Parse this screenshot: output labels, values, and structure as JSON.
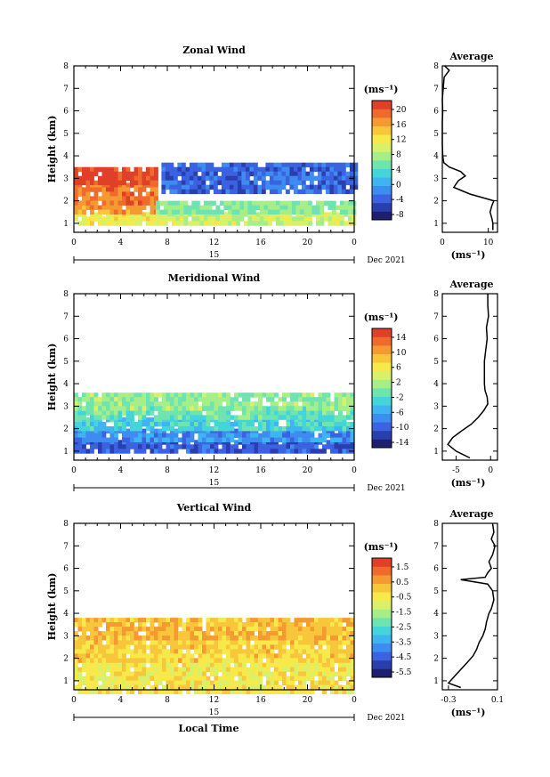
{
  "panels": [
    {
      "id": "zonal",
      "title": "Zonal Wind",
      "ylabel": "Height (km)",
      "unit": "(ms⁻¹)",
      "date_label": "Dec 2021",
      "day_label": "15",
      "avg_title": "Average",
      "avg_xlabel": "(ms⁻¹)",
      "colorbar_ticks": [
        "20",
        "16",
        "12",
        "8",
        "4",
        "0",
        "-4",
        "-8"
      ],
      "avg_xticks": [
        "0",
        "10"
      ]
    },
    {
      "id": "meridional",
      "title": "Meridional Wind",
      "ylabel": "Height (km)",
      "unit": "(ms⁻¹)",
      "date_label": "Dec 2021",
      "day_label": "15",
      "avg_title": "Average",
      "avg_xlabel": "(ms⁻¹)",
      "colorbar_ticks": [
        "14",
        "10",
        "6",
        "2",
        "-2",
        "-6",
        "-10",
        "-14"
      ],
      "avg_xticks": [
        "-5",
        "0"
      ]
    },
    {
      "id": "vertical",
      "title": "Vertical Wind",
      "ylabel": "Height (km)",
      "unit": "(ms⁻¹)",
      "date_label": "Dec 2021",
      "day_label": "15",
      "avg_title": "Average",
      "avg_xlabel": "(ms⁻¹)",
      "colorbar_ticks": [
        "1.5",
        "0.5",
        "-0.5",
        "-1.5",
        "-2.5",
        "-3.5",
        "-4.5",
        "-5.5"
      ],
      "avg_xticks": [
        "-0.3",
        "0.1"
      ]
    }
  ],
  "xticks": [
    "0",
    "4",
    "8",
    "12",
    "16",
    "20",
    "0"
  ],
  "yticks": [
    "1",
    "2",
    "3",
    "4",
    "5",
    "6",
    "7",
    "8"
  ],
  "xlabel": "Local Time",
  "colormap": [
    "#1e1f6e",
    "#2a3fae",
    "#3b62e0",
    "#3f8cf0",
    "#3eb5f0",
    "#43d5d8",
    "#6fe3b0",
    "#a6ef88",
    "#d9f06a",
    "#f7e94a",
    "#f7c63a",
    "#f59a32",
    "#f06a2c",
    "#e0402a"
  ],
  "chart_data": [
    {
      "type": "heatmap",
      "title": "Zonal Wind",
      "ylabel": "Height (km)",
      "xlim": [
        0,
        24
      ],
      "ylim": [
        0.6,
        8
      ],
      "clim": [
        -10,
        22
      ],
      "contour_levels": [
        0
      ],
      "regions": [
        {
          "x": [
            0,
            7
          ],
          "y": [
            1.0,
            1.5
          ],
          "value": 11
        },
        {
          "x": [
            0,
            7
          ],
          "y": [
            1.5,
            2.0
          ],
          "value": 16
        },
        {
          "x": [
            0,
            7
          ],
          "y": [
            2.0,
            2.8
          ],
          "value": 18
        },
        {
          "x": [
            0,
            7
          ],
          "y": [
            2.8,
            3.5
          ],
          "value": 21
        },
        {
          "x": [
            7,
            24
          ],
          "y": [
            1.0,
            1.5
          ],
          "value": 9
        },
        {
          "x": [
            7,
            24
          ],
          "y": [
            1.5,
            2.0
          ],
          "value": 6
        },
        {
          "x": [
            7.5,
            24
          ],
          "y": [
            2.5,
            3.7
          ],
          "value": -4
        }
      ],
      "profile": {
        "xlabel": "(ms⁻¹)",
        "xlim": [
          0,
          12
        ],
        "height": [
          0.7,
          1.0,
          1.2,
          1.5,
          1.8,
          2.0,
          2.3,
          2.6,
          2.9,
          3.1,
          3.3,
          3.5,
          3.7,
          4.0,
          4.5,
          5.0,
          5.5,
          6.0,
          6.5,
          7.0,
          7.5,
          7.8,
          8.0
        ],
        "value": [
          11,
          11,
          10.8,
          10.4,
          10.8,
          11.2,
          6,
          2.5,
          3.5,
          5,
          4,
          1.5,
          0.3,
          0.1,
          0,
          0,
          0,
          0.1,
          0,
          0.2,
          0.4,
          1.5,
          0.5
        ]
      }
    },
    {
      "type": "heatmap",
      "title": "Meridional Wind",
      "ylabel": "Height (km)",
      "xlim": [
        0,
        24
      ],
      "ylim": [
        0.6,
        8
      ],
      "clim": [
        -15,
        16
      ],
      "contour_levels": [
        0
      ],
      "regions": [
        {
          "x": [
            0,
            24
          ],
          "y": [
            1.0,
            1.5
          ],
          "value": -10
        },
        {
          "x": [
            0,
            24
          ],
          "y": [
            1.5,
            2.0
          ],
          "value": -7
        },
        {
          "x": [
            0,
            24
          ],
          "y": [
            2.0,
            2.5
          ],
          "value": -3
        },
        {
          "x": [
            0,
            24
          ],
          "y": [
            2.5,
            3.0
          ],
          "value": -1
        },
        {
          "x": [
            0,
            24
          ],
          "y": [
            3.0,
            3.6
          ],
          "value": 1
        }
      ],
      "profile": {
        "xlabel": "(ms⁻¹)",
        "xlim": [
          -7,
          1
        ],
        "height": [
          0.7,
          1.0,
          1.3,
          1.6,
          1.9,
          2.2,
          2.5,
          2.8,
          3.1,
          3.4,
          3.7,
          4.0,
          4.5,
          5.0,
          5.5,
          6.0,
          6.5,
          7.0,
          7.5,
          8.0
        ],
        "value": [
          -3,
          -5,
          -6.2,
          -5.5,
          -4.2,
          -2.8,
          -1.8,
          -1,
          -0.4,
          -0.5,
          -0.8,
          -0.9,
          -0.9,
          -0.9,
          -0.7,
          -0.5,
          -0.6,
          -0.3,
          -0.4,
          -0.4
        ]
      }
    },
    {
      "type": "heatmap",
      "title": "Vertical Wind",
      "ylabel": "Height (km)",
      "xlim": [
        0,
        24
      ],
      "ylim": [
        0.6,
        8
      ],
      "clim": [
        -6,
        2
      ],
      "regions": [
        {
          "x": [
            0,
            24
          ],
          "y": [
            0.6,
            2.0
          ],
          "value": -0.6
        },
        {
          "x": [
            0,
            24
          ],
          "y": [
            2.0,
            3.0
          ],
          "value": -0.2
        },
        {
          "x": [
            0,
            24
          ],
          "y": [
            3.0,
            3.8
          ],
          "value": 0.1
        }
      ],
      "profile": {
        "xlabel": "(ms⁻¹)",
        "xlim": [
          -0.35,
          0.1
        ],
        "height": [
          0.7,
          0.9,
          1.2,
          1.5,
          1.8,
          2.1,
          2.4,
          2.7,
          3.0,
          3.3,
          3.6,
          4.0,
          4.2,
          4.6,
          5.0,
          5.3,
          5.5,
          5.6,
          5.8,
          6.0,
          6.3,
          6.6,
          7.0,
          7.3,
          7.6,
          8.0
        ],
        "value": [
          -0.2,
          -0.3,
          -0.25,
          -0.2,
          -0.15,
          -0.1,
          -0.07,
          -0.05,
          -0.02,
          0,
          0.01,
          0.03,
          0.05,
          0.07,
          0.06,
          0.02,
          -0.2,
          0.0,
          0.02,
          0.05,
          0.03,
          0.06,
          0.08,
          0.05,
          0.07,
          0.06
        ]
      }
    }
  ]
}
